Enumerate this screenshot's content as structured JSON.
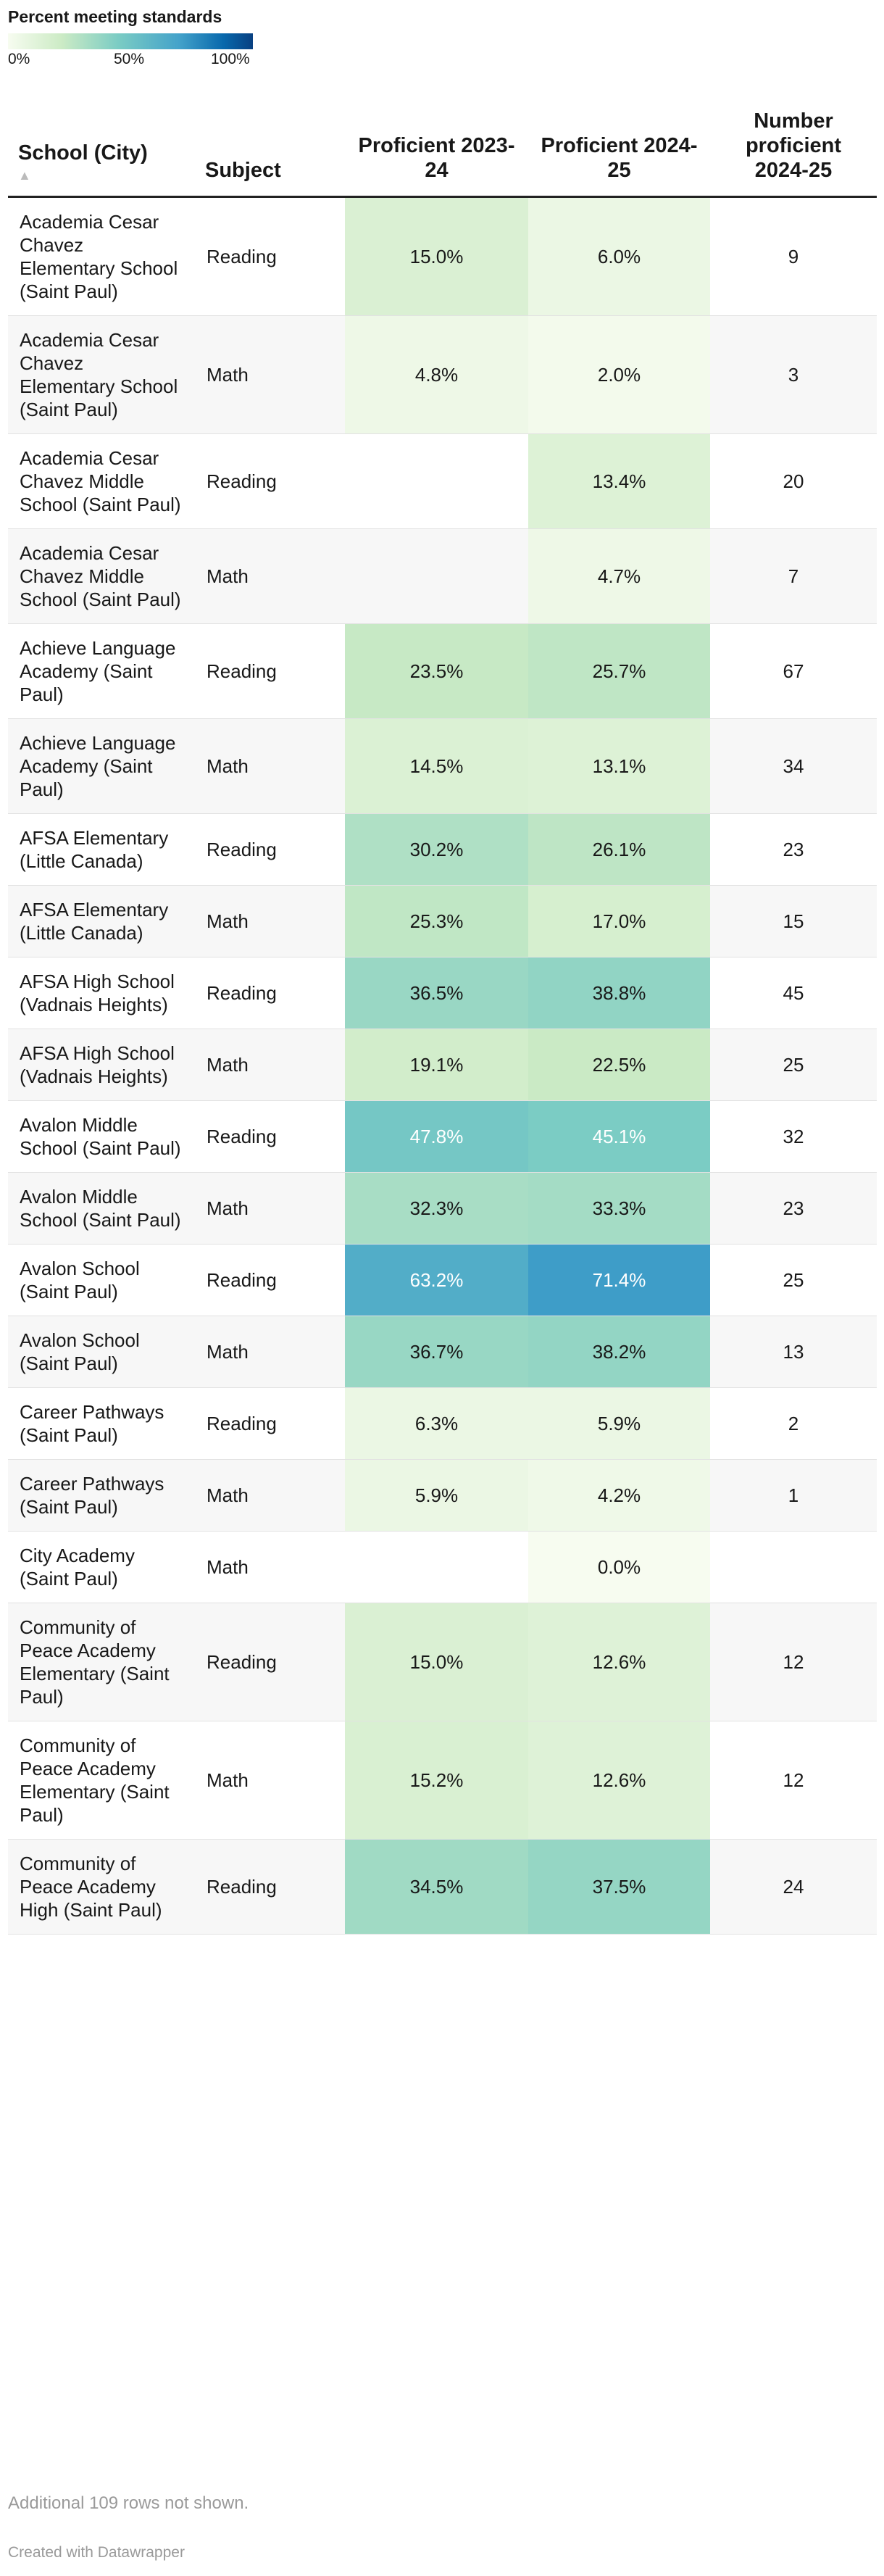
{
  "legend": {
    "title": "Percent meeting standards",
    "ticks": [
      "0%",
      "50%",
      "100%"
    ]
  },
  "colors": {
    "scale": [
      "#f7fcf0",
      "#ccebc5",
      "#7bccc4",
      "#43a2ca",
      "#0868ac",
      "#084081"
    ],
    "header_rule": "#222222",
    "row_stripe": "#f7f7f7"
  },
  "chart_data": {
    "type": "table",
    "columns": [
      "School (City)",
      "Subject",
      "Proficient 2023-24",
      "Proficient 2024-25",
      "Number proficient 2024-25"
    ],
    "sort_indicator": "▲",
    "rows": [
      {
        "school": "Academia Cesar Chavez Elementary School (Saint Paul)",
        "subject": "Reading",
        "p2324": 15.0,
        "p2425": 6.0,
        "num": 9
      },
      {
        "school": "Academia Cesar Chavez Elementary School (Saint Paul)",
        "subject": "Math",
        "p2324": 4.8,
        "p2425": 2.0,
        "num": 3
      },
      {
        "school": "Academia Cesar Chavez Middle School (Saint Paul)",
        "subject": "Reading",
        "p2324": null,
        "p2425": 13.4,
        "num": 20
      },
      {
        "school": "Academia Cesar Chavez Middle School (Saint Paul)",
        "subject": "Math",
        "p2324": null,
        "p2425": 4.7,
        "num": 7
      },
      {
        "school": "Achieve Language Academy (Saint Paul)",
        "subject": "Reading",
        "p2324": 23.5,
        "p2425": 25.7,
        "num": 67
      },
      {
        "school": "Achieve Language Academy (Saint Paul)",
        "subject": "Math",
        "p2324": 14.5,
        "p2425": 13.1,
        "num": 34
      },
      {
        "school": "AFSA Elementary (Little Canada)",
        "subject": "Reading",
        "p2324": 30.2,
        "p2425": 26.1,
        "num": 23
      },
      {
        "school": "AFSA Elementary (Little Canada)",
        "subject": "Math",
        "p2324": 25.3,
        "p2425": 17.0,
        "num": 15
      },
      {
        "school": "AFSA High School (Vadnais Heights)",
        "subject": "Reading",
        "p2324": 36.5,
        "p2425": 38.8,
        "num": 45
      },
      {
        "school": "AFSA High School (Vadnais Heights)",
        "subject": "Math",
        "p2324": 19.1,
        "p2425": 22.5,
        "num": 25
      },
      {
        "school": "Avalon Middle School (Saint Paul)",
        "subject": "Reading",
        "p2324": 47.8,
        "p2425": 45.1,
        "num": 32
      },
      {
        "school": "Avalon Middle School (Saint Paul)",
        "subject": "Math",
        "p2324": 32.3,
        "p2425": 33.3,
        "num": 23
      },
      {
        "school": "Avalon School (Saint Paul)",
        "subject": "Reading",
        "p2324": 63.2,
        "p2425": 71.4,
        "num": 25
      },
      {
        "school": "Avalon School (Saint Paul)",
        "subject": "Math",
        "p2324": 36.7,
        "p2425": 38.2,
        "num": 13
      },
      {
        "school": "Career Pathways (Saint Paul)",
        "subject": "Reading",
        "p2324": 6.3,
        "p2425": 5.9,
        "num": 2
      },
      {
        "school": "Career Pathways (Saint Paul)",
        "subject": "Math",
        "p2324": 5.9,
        "p2425": 4.2,
        "num": 1
      },
      {
        "school": "City Academy (Saint Paul)",
        "subject": "Math",
        "p2324": null,
        "p2425": 0.0,
        "num": null
      },
      {
        "school": "Community of Peace Academy Elementary (Saint Paul)",
        "subject": "Reading",
        "p2324": 15.0,
        "p2425": 12.6,
        "num": 12
      },
      {
        "school": "Community of Peace Academy Elementary (Saint Paul)",
        "subject": "Math",
        "p2324": 15.2,
        "p2425": 12.6,
        "num": 12
      },
      {
        "school": "Community of Peace Academy High (Saint Paul)",
        "subject": "Reading",
        "p2324": 34.5,
        "p2425": 37.5,
        "num": 24
      }
    ]
  },
  "footer": {
    "note": "Additional 109 rows not shown.",
    "credit": "Created with Datawrapper"
  }
}
